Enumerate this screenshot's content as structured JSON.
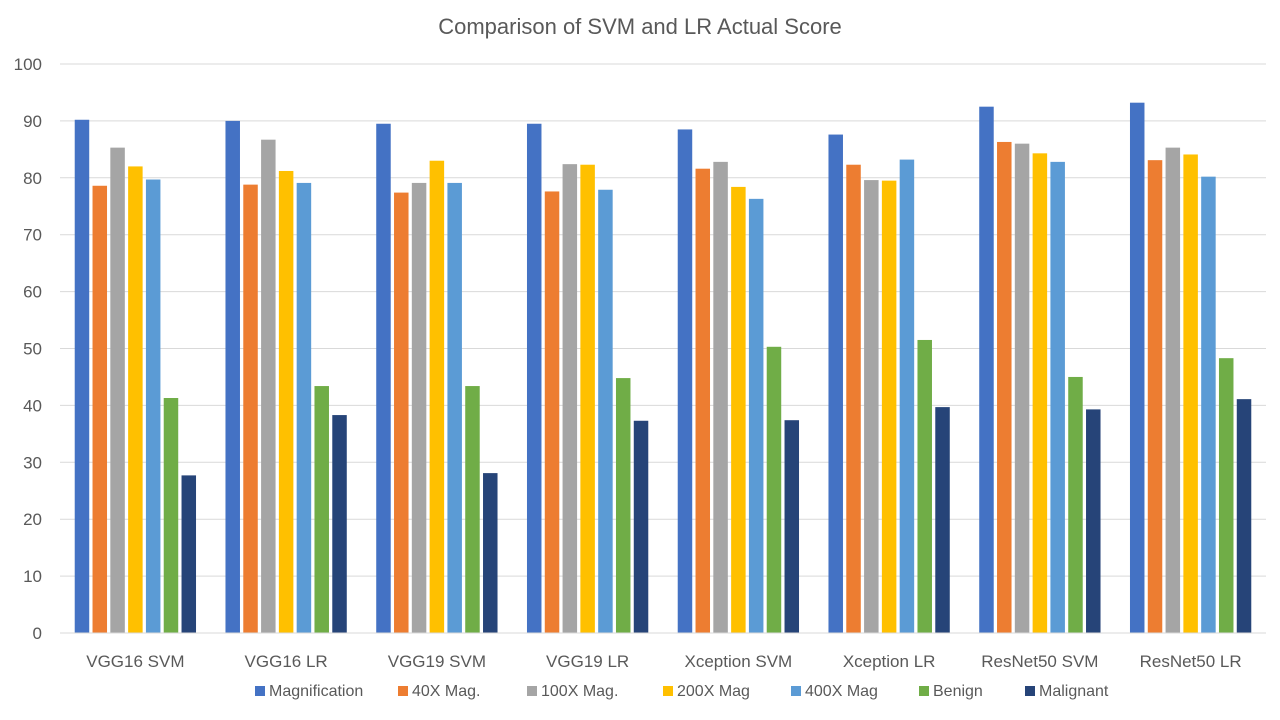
{
  "chart_data": {
    "type": "bar",
    "title": "Comparison of SVM  and LR Actual Score",
    "xlabel": "",
    "ylabel": "",
    "ylim": [
      0,
      100
    ],
    "yticks": [
      0,
      10,
      20,
      30,
      40,
      50,
      60,
      70,
      80,
      90,
      100
    ],
    "grid": true,
    "legend_position": "bottom",
    "categories": [
      "VGG16 SVM",
      "VGG16 LR",
      "VGG19 SVM",
      "VGG19 LR",
      "Xception SVM",
      "Xception LR",
      "ResNet50 SVM",
      "ResNet50 LR"
    ],
    "series": [
      {
        "name": "Magnification",
        "color": "#4472C4",
        "values": [
          90.2,
          90.0,
          89.5,
          89.5,
          88.5,
          87.6,
          92.5,
          93.2
        ]
      },
      {
        "name": "40X Mag.",
        "color": "#ED7D31",
        "values": [
          78.6,
          78.8,
          77.4,
          77.6,
          81.6,
          82.3,
          86.3,
          83.1
        ]
      },
      {
        "name": "100X Mag.",
        "color": "#A5A5A5",
        "values": [
          85.3,
          86.7,
          79.1,
          82.4,
          82.8,
          79.6,
          86.0,
          85.3
        ]
      },
      {
        "name": "200X Mag",
        "color": "#FFC000",
        "values": [
          82.0,
          81.2,
          83.0,
          82.3,
          78.4,
          79.5,
          84.3,
          84.1
        ]
      },
      {
        "name": "400X Mag",
        "color": "#5B9BD5",
        "values": [
          79.7,
          79.1,
          79.1,
          77.9,
          76.3,
          83.2,
          82.8,
          80.2
        ]
      },
      {
        "name": "Benign",
        "color": "#70AD47",
        "values": [
          41.3,
          43.4,
          43.4,
          44.8,
          50.3,
          51.5,
          45.0,
          48.3
        ]
      },
      {
        "name": "Malignant",
        "color": "#264478",
        "values": [
          27.7,
          38.3,
          28.1,
          37.3,
          37.4,
          39.7,
          39.3,
          41.1
        ]
      }
    ]
  }
}
